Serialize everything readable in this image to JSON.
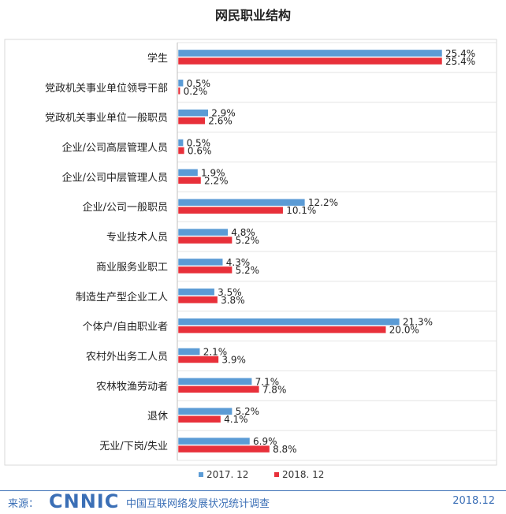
{
  "chart_data": {
    "type": "bar",
    "orientation": "horizontal",
    "title": "网民职业结构",
    "categories": [
      "学生",
      "党政机关事业单位领导干部",
      "党政机关事业单位一般职员",
      "企业/公司高层管理人员",
      "企业/公司中层管理人员",
      "企业/公司一般职员",
      "专业技术人员",
      "商业服务业职工",
      "制造生产型企业工人",
      "个体户/自由职业者",
      "农村外出务工人员",
      "农林牧渔劳动者",
      "退休",
      "无业/下岗/失业"
    ],
    "series": [
      {
        "name": "2017. 12",
        "color": "#5b9bd5",
        "values": [
          25.4,
          0.5,
          2.9,
          0.5,
          1.9,
          12.2,
          4.8,
          4.3,
          3.5,
          21.3,
          2.1,
          7.1,
          5.2,
          6.9
        ],
        "labels": [
          "25.4%",
          "0.5%",
          "2.9%",
          "0.5%",
          "1.9%",
          "12.2%",
          "4.8%",
          "4.3%",
          "3.5%",
          "21.3%",
          "2.1%",
          "7.1%",
          "5.2%",
          "6.9%"
        ]
      },
      {
        "name": "2018. 12",
        "color": "#e8303a",
        "values": [
          25.4,
          0.2,
          2.6,
          0.6,
          2.2,
          10.1,
          5.2,
          5.2,
          3.8,
          20.0,
          3.9,
          7.8,
          4.1,
          8.8
        ],
        "labels": [
          "25.4%",
          "0.2%",
          "2.6%",
          "0.6%",
          "2.2%",
          "10.1%",
          "5.2%",
          "5.2%",
          "3.8%",
          "20.0%",
          "3.9%",
          "7.8%",
          "4.1%",
          "8.8%"
        ]
      }
    ],
    "xlim": [
      0,
      25.4
    ],
    "grid": true,
    "legend": "bottom"
  },
  "footer": {
    "source_label": "来源：",
    "logo": "CNNIC",
    "org": "中国互联网络发展状况统计调查",
    "date": "2018.12"
  }
}
